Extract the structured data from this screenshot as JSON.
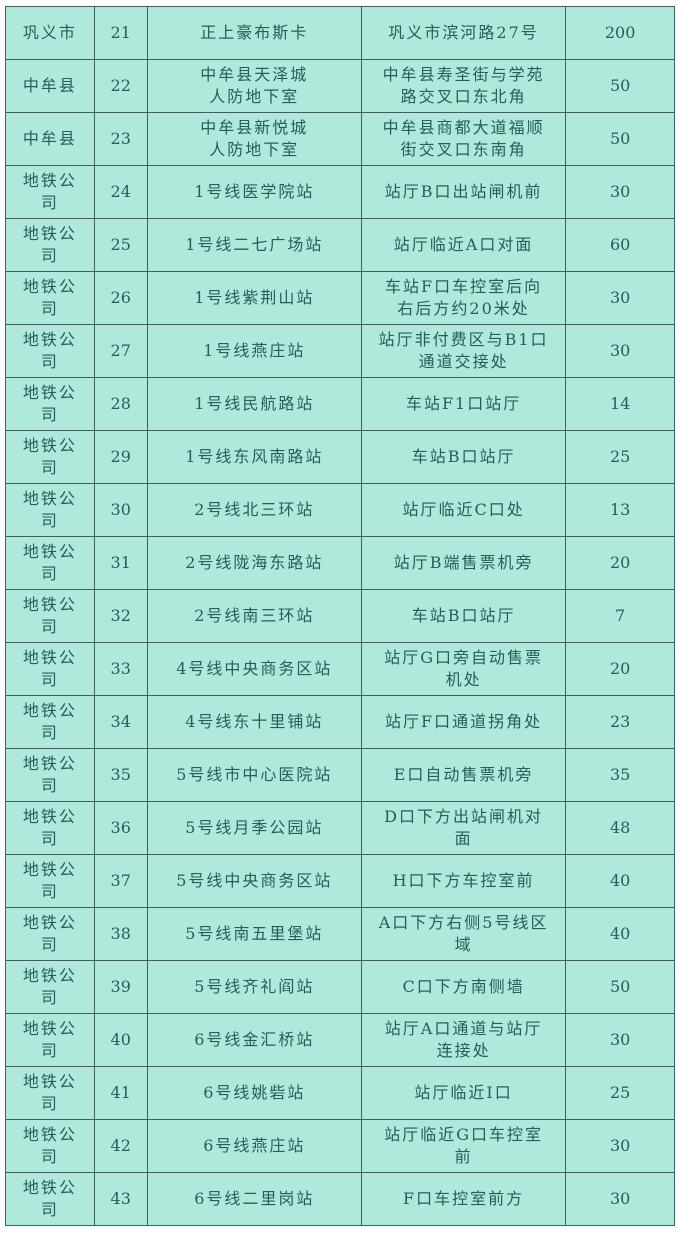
{
  "rows": [
    {
      "unit": [
        "巩义市"
      ],
      "no": "21",
      "site": [
        "正上豪布斯卡"
      ],
      "location": [
        "巩义市滨河路27号"
      ],
      "capacity": "200"
    },
    {
      "unit": [
        "中牟县"
      ],
      "no": "22",
      "site": [
        "中牟县天泽城",
        "人防地下室"
      ],
      "location": [
        "中牟县寿圣街与学苑",
        "路交叉口东北角"
      ],
      "capacity": "50"
    },
    {
      "unit": [
        "中牟县"
      ],
      "no": "23",
      "site": [
        "中牟县新悦城",
        "人防地下室"
      ],
      "location": [
        "中牟县商都大道福顺",
        "街交叉口东南角"
      ],
      "capacity": "50"
    },
    {
      "unit": [
        "地铁公",
        "司"
      ],
      "no": "24",
      "site": [
        "1号线医学院站"
      ],
      "location": [
        "站厅B口出站闸机前"
      ],
      "capacity": "30"
    },
    {
      "unit": [
        "地铁公",
        "司"
      ],
      "no": "25",
      "site": [
        "1号线二七广场站"
      ],
      "location": [
        "站厅临近A口对面"
      ],
      "capacity": "60"
    },
    {
      "unit": [
        "地铁公",
        "司"
      ],
      "no": "26",
      "site": [
        "1号线紫荆山站"
      ],
      "location": [
        "车站F口车控室后向",
        "右后方约20米处"
      ],
      "capacity": "30"
    },
    {
      "unit": [
        "地铁公",
        "司"
      ],
      "no": "27",
      "site": [
        "1号线燕庄站"
      ],
      "location": [
        "站厅非付费区与B1口",
        "通道交接处"
      ],
      "capacity": "30"
    },
    {
      "unit": [
        "地铁公",
        "司"
      ],
      "no": "28",
      "site": [
        "1号线民航路站"
      ],
      "location": [
        "车站F1口站厅"
      ],
      "capacity": "14"
    },
    {
      "unit": [
        "地铁公",
        "司"
      ],
      "no": "29",
      "site": [
        "1号线东风南路站"
      ],
      "location": [
        "车站B口站厅"
      ],
      "capacity": "25"
    },
    {
      "unit": [
        "地铁公",
        "司"
      ],
      "no": "30",
      "site": [
        "2号线北三环站"
      ],
      "location": [
        "站厅临近C口处"
      ],
      "capacity": "13"
    },
    {
      "unit": [
        "地铁公",
        "司"
      ],
      "no": "31",
      "site": [
        "2号线陇海东路站"
      ],
      "location": [
        "站厅B端售票机旁"
      ],
      "capacity": "20"
    },
    {
      "unit": [
        "地铁公",
        "司"
      ],
      "no": "32",
      "site": [
        "2号线南三环站"
      ],
      "location": [
        "车站B口站厅"
      ],
      "capacity": "7"
    },
    {
      "unit": [
        "地铁公",
        "司"
      ],
      "no": "33",
      "site": [
        "4号线中央商务区站"
      ],
      "location": [
        "站厅G口旁自动售票",
        "机处"
      ],
      "capacity": "20"
    },
    {
      "unit": [
        "地铁公",
        "司"
      ],
      "no": "34",
      "site": [
        "4号线东十里铺站"
      ],
      "location": [
        "站厅F口通道拐角处"
      ],
      "capacity": "23"
    },
    {
      "unit": [
        "地铁公",
        "司"
      ],
      "no": "35",
      "site": [
        "5号线市中心医院站"
      ],
      "location": [
        "E口自动售票机旁"
      ],
      "capacity": "35"
    },
    {
      "unit": [
        "地铁公",
        "司"
      ],
      "no": "36",
      "site": [
        "5号线月季公园站"
      ],
      "location": [
        "D口下方出站闸机对",
        "面"
      ],
      "capacity": "48"
    },
    {
      "unit": [
        "地铁公",
        "司"
      ],
      "no": "37",
      "site": [
        "5号线中央商务区站"
      ],
      "location": [
        "H口下方车控室前"
      ],
      "capacity": "40"
    },
    {
      "unit": [
        "地铁公",
        "司"
      ],
      "no": "38",
      "site": [
        "5号线南五里堡站"
      ],
      "location": [
        "A口下方右侧5号线区",
        "域"
      ],
      "capacity": "40"
    },
    {
      "unit": [
        "地铁公",
        "司"
      ],
      "no": "39",
      "site": [
        "5号线齐礼阎站"
      ],
      "location": [
        "C口下方南侧墙"
      ],
      "capacity": "50"
    },
    {
      "unit": [
        "地铁公",
        "司"
      ],
      "no": "40",
      "site": [
        "6号线金汇桥站"
      ],
      "location": [
        "站厅A口通道与站厅",
        "连接处"
      ],
      "capacity": "30"
    },
    {
      "unit": [
        "地铁公",
        "司"
      ],
      "no": "41",
      "site": [
        "6号线姚砦站"
      ],
      "location": [
        "站厅临近I口"
      ],
      "capacity": "25"
    },
    {
      "unit": [
        "地铁公",
        "司"
      ],
      "no": "42",
      "site": [
        "6号线燕庄站"
      ],
      "location": [
        "站厅临近G口车控室",
        "前"
      ],
      "capacity": "30"
    },
    {
      "unit": [
        "地铁公",
        "司"
      ],
      "no": "43",
      "site": [
        "6号线二里岗站"
      ],
      "location": [
        "F口车控室前方"
      ],
      "capacity": "30"
    }
  ]
}
